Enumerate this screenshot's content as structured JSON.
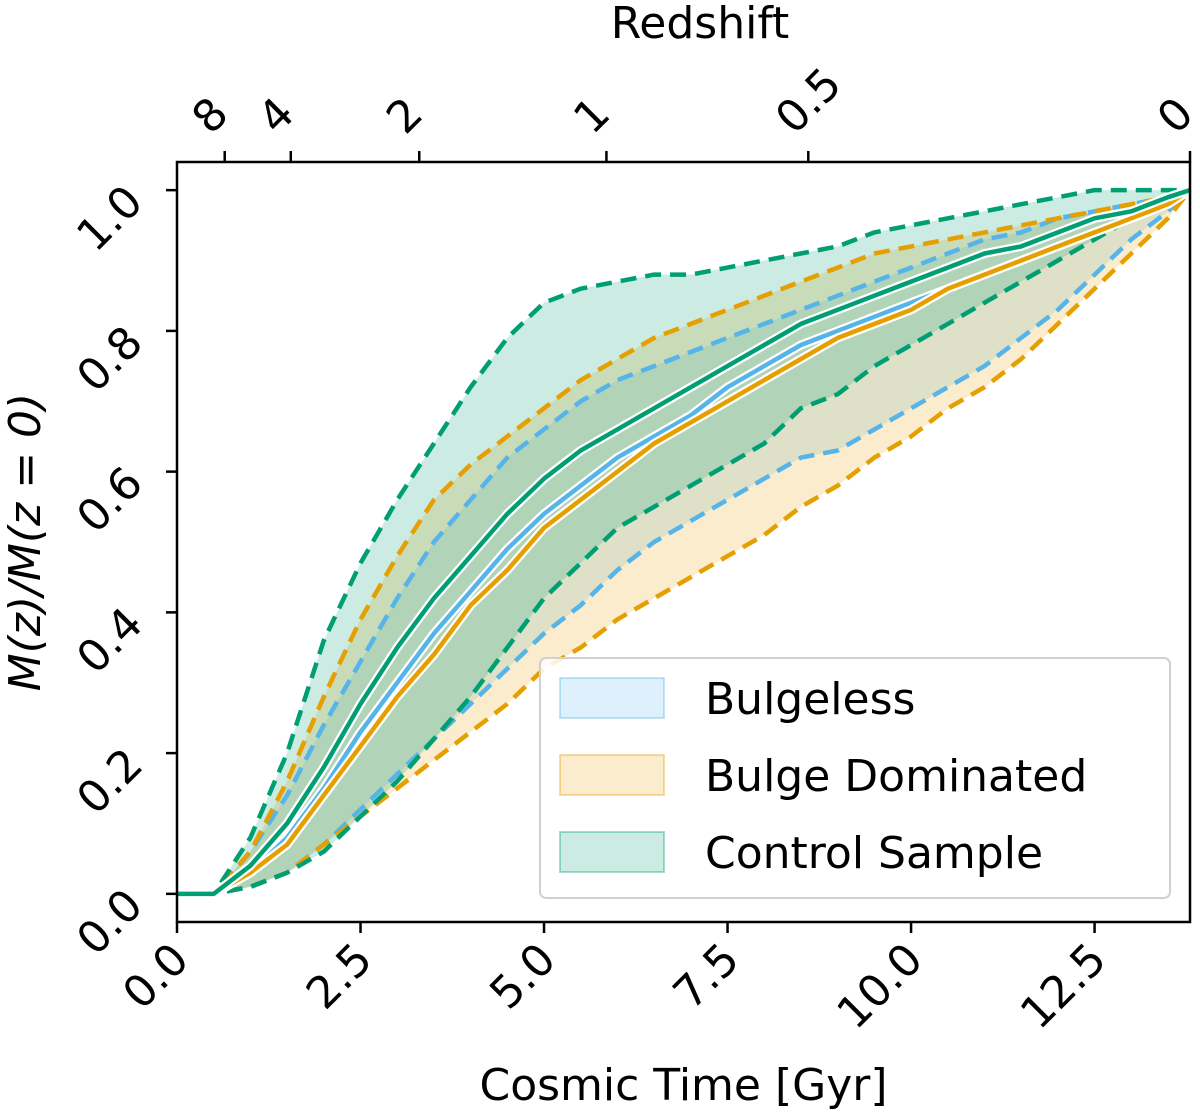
{
  "chart_data": {
    "type": "area",
    "xlabel": "Cosmic Time [Gyr]",
    "ylabel": "M(z)/M(z = 0)",
    "top_xlabel": "Redshift",
    "xlim": [
      0,
      13.8
    ],
    "ylim": [
      -0.04,
      1.04
    ],
    "x_ticks": [
      0.0,
      2.5,
      5.0,
      7.5,
      10.0,
      12.5
    ],
    "x_tick_labels": [
      "0.0",
      "2.5",
      "5.0",
      "7.5",
      "10.0",
      "12.5"
    ],
    "y_ticks": [
      0.0,
      0.2,
      0.4,
      0.6,
      0.8,
      1.0
    ],
    "y_tick_labels": [
      "0.0",
      "0.2",
      "0.4",
      "0.6",
      "0.8",
      "1.0"
    ],
    "top_ticks": [
      {
        "label": "8",
        "time": 0.65
      },
      {
        "label": "4",
        "time": 1.55
      },
      {
        "label": "2",
        "time": 3.3
      },
      {
        "label": "1",
        "time": 5.85
      },
      {
        "label": "0.5",
        "time": 8.6
      },
      {
        "label": "0",
        "time": 13.8
      }
    ],
    "grid": false,
    "legend_position": "lower-right",
    "x": [
      0.0,
      0.5,
      1.0,
      1.5,
      2.0,
      2.5,
      3.0,
      3.5,
      4.0,
      4.5,
      5.0,
      5.5,
      6.0,
      6.5,
      7.0,
      7.5,
      8.0,
      8.5,
      9.0,
      9.5,
      10.0,
      10.5,
      11.0,
      11.5,
      12.0,
      12.5,
      13.0,
      13.5,
      13.8
    ],
    "series": [
      {
        "name": "Bulgeless",
        "color": "#56B4E9",
        "median": [
          0.0,
          0.0,
          0.03,
          0.08,
          0.15,
          0.23,
          0.3,
          0.37,
          0.43,
          0.49,
          0.54,
          0.58,
          0.62,
          0.65,
          0.68,
          0.72,
          0.75,
          0.78,
          0.8,
          0.82,
          0.84,
          0.86,
          0.88,
          0.9,
          0.92,
          0.94,
          0.96,
          0.98,
          1.0
        ],
        "upper": [
          0.0,
          0.0,
          0.06,
          0.14,
          0.24,
          0.33,
          0.42,
          0.5,
          0.56,
          0.62,
          0.66,
          0.7,
          0.73,
          0.75,
          0.77,
          0.79,
          0.81,
          0.83,
          0.85,
          0.87,
          0.89,
          0.91,
          0.93,
          0.94,
          0.96,
          0.97,
          0.98,
          0.99,
          1.0
        ],
        "lower": [
          0.0,
          0.0,
          0.01,
          0.03,
          0.07,
          0.12,
          0.17,
          0.22,
          0.27,
          0.32,
          0.37,
          0.41,
          0.46,
          0.5,
          0.53,
          0.56,
          0.59,
          0.62,
          0.63,
          0.66,
          0.69,
          0.72,
          0.75,
          0.79,
          0.83,
          0.88,
          0.93,
          0.97,
          1.0
        ]
      },
      {
        "name": "Bulge Dominated",
        "color": "#E69F00",
        "median": [
          0.0,
          0.0,
          0.03,
          0.07,
          0.14,
          0.21,
          0.28,
          0.34,
          0.41,
          0.46,
          0.52,
          0.56,
          0.6,
          0.64,
          0.67,
          0.7,
          0.73,
          0.76,
          0.79,
          0.81,
          0.83,
          0.86,
          0.88,
          0.9,
          0.92,
          0.94,
          0.96,
          0.98,
          1.0
        ],
        "upper": [
          0.0,
          0.0,
          0.06,
          0.16,
          0.28,
          0.39,
          0.48,
          0.56,
          0.61,
          0.65,
          0.69,
          0.73,
          0.76,
          0.79,
          0.81,
          0.83,
          0.85,
          0.87,
          0.89,
          0.91,
          0.92,
          0.93,
          0.94,
          0.95,
          0.96,
          0.97,
          0.98,
          0.99,
          1.0
        ],
        "lower": [
          0.0,
          0.0,
          0.01,
          0.03,
          0.07,
          0.11,
          0.15,
          0.19,
          0.23,
          0.27,
          0.32,
          0.35,
          0.39,
          0.42,
          0.45,
          0.48,
          0.51,
          0.55,
          0.58,
          0.62,
          0.65,
          0.69,
          0.72,
          0.76,
          0.81,
          0.86,
          0.91,
          0.96,
          1.0
        ]
      },
      {
        "name": "Control Sample",
        "color": "#009E73",
        "median": [
          0.0,
          0.0,
          0.04,
          0.1,
          0.18,
          0.27,
          0.35,
          0.42,
          0.48,
          0.54,
          0.59,
          0.63,
          0.66,
          0.69,
          0.72,
          0.75,
          0.78,
          0.81,
          0.83,
          0.85,
          0.87,
          0.89,
          0.91,
          0.92,
          0.94,
          0.96,
          0.97,
          0.99,
          1.0
        ],
        "upper": [
          0.0,
          0.0,
          0.08,
          0.2,
          0.36,
          0.47,
          0.56,
          0.64,
          0.72,
          0.79,
          0.84,
          0.86,
          0.87,
          0.88,
          0.88,
          0.89,
          0.9,
          0.91,
          0.92,
          0.94,
          0.95,
          0.96,
          0.97,
          0.98,
          0.99,
          1.0,
          1.0,
          1.0,
          1.0
        ],
        "lower": [
          0.0,
          0.0,
          0.01,
          0.03,
          0.06,
          0.11,
          0.16,
          0.22,
          0.28,
          0.35,
          0.42,
          0.47,
          0.52,
          0.55,
          0.58,
          0.61,
          0.64,
          0.69,
          0.71,
          0.75,
          0.78,
          0.81,
          0.84,
          0.87,
          0.9,
          0.93,
          0.96,
          0.98,
          1.0
        ]
      }
    ]
  }
}
